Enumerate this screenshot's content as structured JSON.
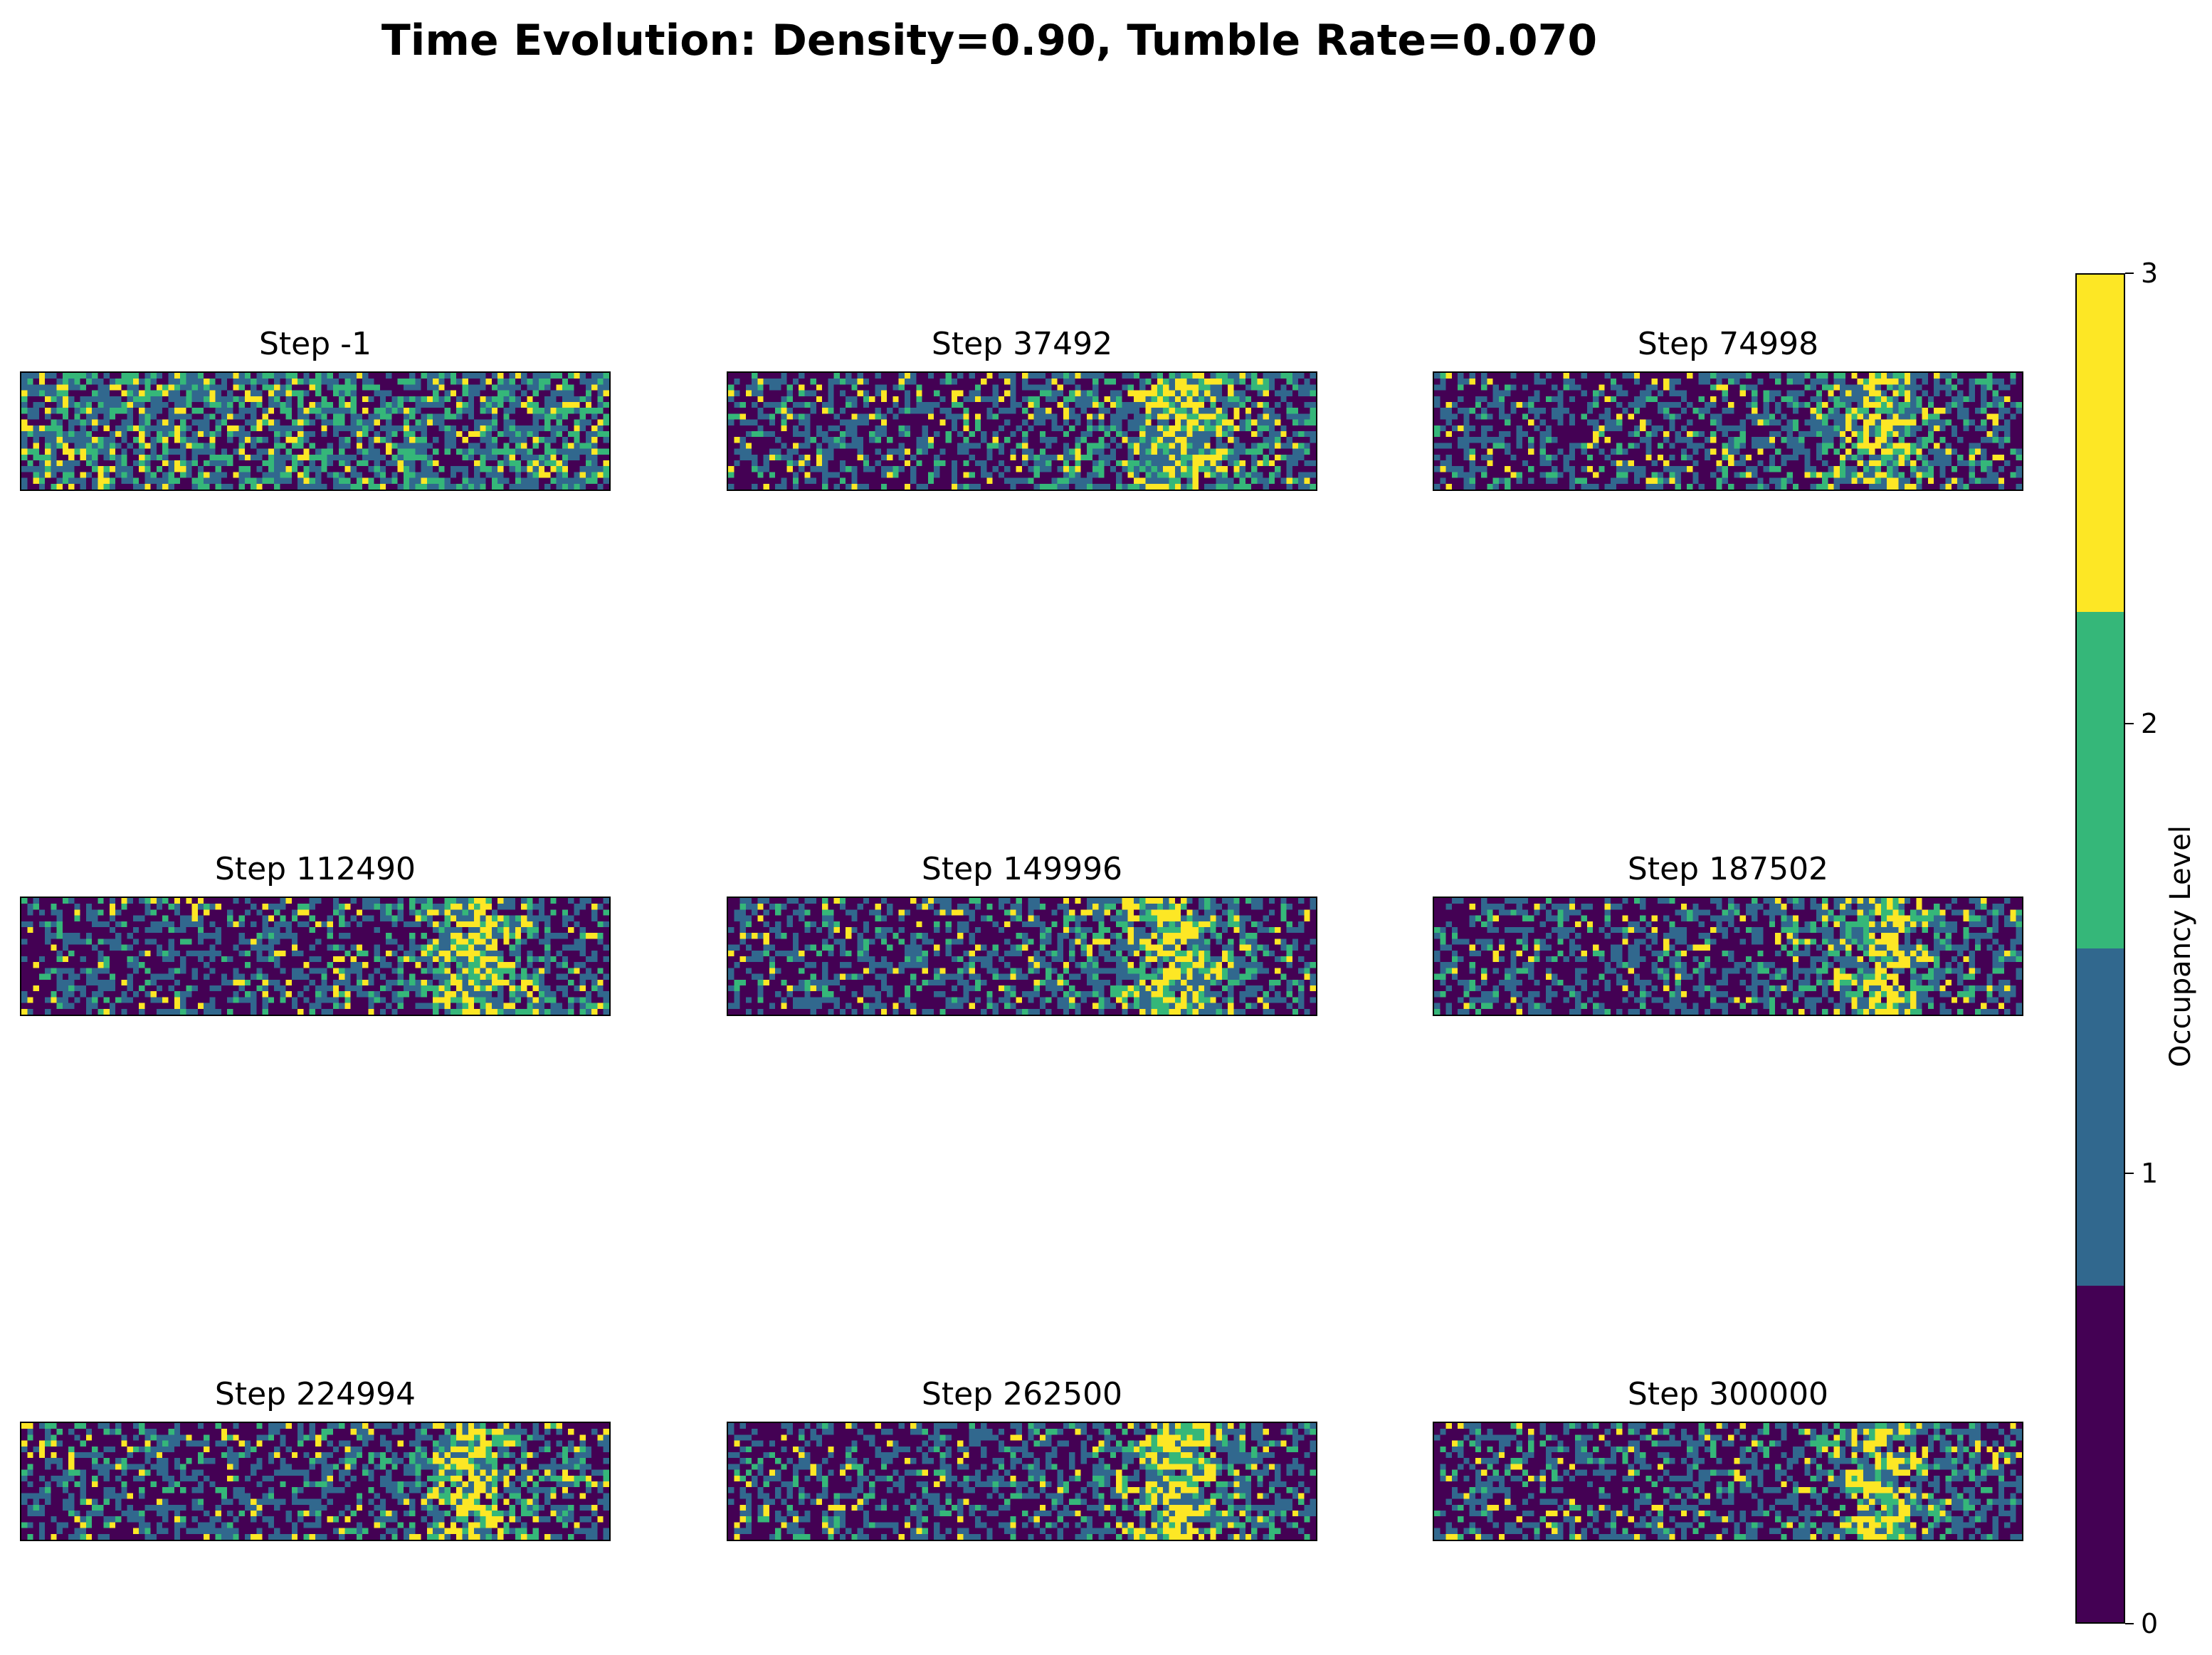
{
  "figure": {
    "title": "Time Evolution: Density=0.90, Tumble Rate=0.070"
  },
  "chart_data": {
    "type": "heatmap",
    "grid": {
      "rows": 20,
      "cols": 100
    },
    "value_range": [
      0,
      3
    ],
    "levels": [
      0,
      1,
      2,
      3
    ],
    "colormap": [
      "#440154",
      "#31688e",
      "#35b779",
      "#fde725"
    ],
    "colorbar": {
      "label": "Occupancy Level",
      "ticks": [
        "0",
        "1",
        "2",
        "3"
      ]
    },
    "panels": [
      {
        "title": "Step -1",
        "step": -1,
        "cluster_center_col": null,
        "cluster_width": 0
      },
      {
        "title": "Step 37492",
        "step": 37492,
        "cluster_center_col": 77,
        "cluster_width": 14
      },
      {
        "title": "Step 74998",
        "step": 74998,
        "cluster_center_col": 76,
        "cluster_width": 11
      },
      {
        "title": "Step 112490",
        "step": 112490,
        "cluster_center_col": 77,
        "cluster_width": 11
      },
      {
        "title": "Step 149996",
        "step": 149996,
        "cluster_center_col": 75,
        "cluster_width": 13
      },
      {
        "title": "Step 187502",
        "step": 187502,
        "cluster_center_col": 76,
        "cluster_width": 11
      },
      {
        "title": "Step 224994",
        "step": 224994,
        "cluster_center_col": 76,
        "cluster_width": 10
      },
      {
        "title": "Step 262500",
        "step": 262500,
        "cluster_center_col": 76,
        "cluster_width": 12
      },
      {
        "title": "Step 300000",
        "step": 300000,
        "cluster_center_col": 76,
        "cluster_width": 11
      }
    ]
  }
}
